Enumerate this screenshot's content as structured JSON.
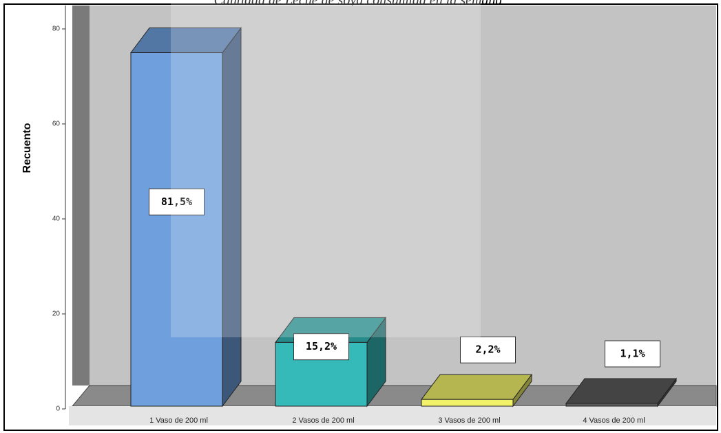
{
  "chart_data": {
    "type": "bar3d",
    "title": "Cantidad de Leche de soya consumida en la semana",
    "y_label": "Recuento",
    "categories": [
      "1 Vaso de 200 ml",
      "2 Vasos de 200 ml",
      "3 Vasos de 200 ml",
      "4 Vasos de 200 ml"
    ],
    "values": [
      75,
      14,
      2,
      1
    ],
    "data_labels": [
      "81,5%",
      "15,2%",
      "2,2%",
      "1,1%"
    ],
    "colors": [
      "#6f9fdc",
      "#35b9b9",
      "#f2f26a",
      "#5a5a5a"
    ],
    "ylim": [
      0,
      80
    ],
    "yticks": [
      0,
      20,
      40,
      60,
      80
    ]
  }
}
